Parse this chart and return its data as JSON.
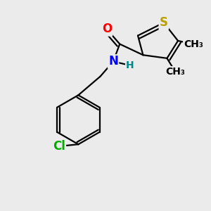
{
  "background_color": "#ebebeb",
  "atom_colors": {
    "S": "#b8a000",
    "O": "#ff0000",
    "N": "#0000ff",
    "Cl": "#00aa00",
    "C": "#000000",
    "H": "#008888"
  },
  "bond_color": "#000000",
  "bond_width": 1.6,
  "font_size_atoms": 12,
  "font_size_small": 10,
  "xlim": [
    0.0,
    3.2
  ],
  "ylim": [
    0.0,
    3.2
  ]
}
